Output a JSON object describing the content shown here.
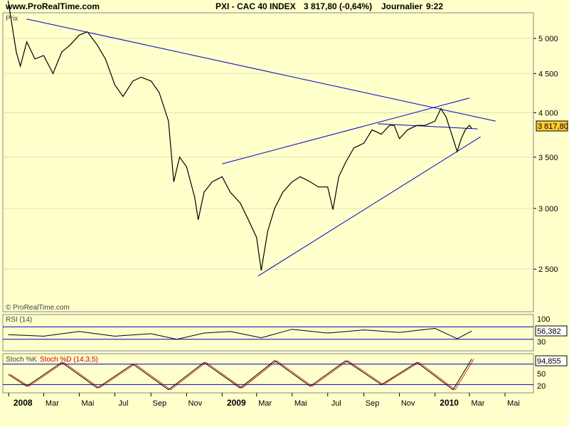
{
  "header": {
    "site": "www.ProRealTime.com",
    "ticker_line": "PXI - CAC 40 INDEX",
    "last_change": "3 817,80 (-0,64%)",
    "period": "Journalier",
    "time": "9:22"
  },
  "panels": {
    "price_label": "Prix",
    "copyright": "© ProRealTime.com",
    "rsi_label": "RSI (14)",
    "stoch_label_k": "Stoch %K",
    "stoch_label_d": "Stoch %D (14,3,5)"
  },
  "colors": {
    "background": "#ffffcc",
    "price_line": "#000000",
    "trend_line": "#0000cc",
    "stoch_d": "#cc0000",
    "badge_bg": "#ffcc33"
  },
  "chart_data": [
    {
      "type": "line",
      "title": "",
      "xlabel": "",
      "ylabel": "",
      "y_scale": "log",
      "ylim": [
        2200,
        5400
      ],
      "y_ticks": [
        2500,
        3000,
        3500,
        4000,
        4500,
        5000
      ],
      "y_tick_labels": [
        "2 500",
        "3 000",
        "3 500",
        "4 000",
        "4 500",
        "5 000"
      ],
      "x_ticks": [
        "2008",
        "Mar",
        "Mai",
        "Jul",
        "Sep",
        "Nov",
        "2009",
        "Mar",
        "Mai",
        "Jul",
        "Sep",
        "Nov",
        "2010",
        "Mar",
        "Mai"
      ],
      "x_ticks_bold": [
        "2008",
        "2009",
        "2010"
      ],
      "last_value_label": "3 817,80",
      "series": [
        {
          "x": [
            "2007-12-31",
            "2008-01-14",
            "2008-01-21",
            "2008-02-01",
            "2008-02-15",
            "2008-03-01",
            "2008-03-17",
            "2008-04-01",
            "2008-04-15",
            "2008-05-01",
            "2008-05-15",
            "2008-06-01",
            "2008-06-15",
            "2008-07-01",
            "2008-07-15",
            "2008-08-01",
            "2008-08-15",
            "2008-09-01",
            "2008-09-15",
            "2008-10-01",
            "2008-10-10",
            "2008-10-20",
            "2008-11-01",
            "2008-11-15",
            "2008-11-21",
            "2008-12-01",
            "2008-12-15",
            "2009-01-01",
            "2009-01-15",
            "2009-02-01",
            "2009-02-15",
            "2009-03-01",
            "2009-03-09",
            "2009-03-20",
            "2009-04-01",
            "2009-04-15",
            "2009-05-01",
            "2009-05-15",
            "2009-06-01",
            "2009-06-15",
            "2009-07-01",
            "2009-07-10",
            "2009-07-20",
            "2009-08-01",
            "2009-08-15",
            "2009-09-01",
            "2009-09-15",
            "2009-10-01",
            "2009-10-15",
            "2009-10-23",
            "2009-11-01",
            "2009-11-15",
            "2009-12-01",
            "2009-12-15",
            "2010-01-01",
            "2010-01-11",
            "2010-01-20",
            "2010-02-01",
            "2010-02-08",
            "2010-02-15",
            "2010-02-22",
            "2010-03-01",
            "2010-03-05"
          ],
          "values": [
            5600,
            4800,
            4600,
            4950,
            4700,
            4750,
            4500,
            4800,
            4900,
            5050,
            5100,
            4900,
            4700,
            4350,
            4200,
            4400,
            4450,
            4400,
            4250,
            3900,
            3250,
            3500,
            3400,
            3100,
            2900,
            3150,
            3250,
            3300,
            3150,
            3050,
            2900,
            2750,
            2490,
            2800,
            3000,
            3150,
            3250,
            3300,
            3250,
            3200,
            3200,
            2990,
            3300,
            3450,
            3600,
            3650,
            3800,
            3750,
            3850,
            3850,
            3700,
            3800,
            3850,
            3850,
            3900,
            4050,
            3950,
            3700,
            3560,
            3700,
            3800,
            3850,
            3818
          ]
        }
      ],
      "trendlines": [
        {
          "from": [
            "2008-02-01",
            5300
          ],
          "to": [
            "2010-04-15",
            3900
          ]
        },
        {
          "from": [
            "2009-01-01",
            3430
          ],
          "to": [
            "2010-03-01",
            4180
          ]
        },
        {
          "from": [
            "2009-03-04",
            2450
          ],
          "to": [
            "2010-03-20",
            3720
          ]
        },
        {
          "from": [
            "2009-09-25",
            3870
          ],
          "to": [
            "2010-03-15",
            3810
          ]
        }
      ]
    },
    {
      "type": "line",
      "title": "",
      "ylim": [
        0,
        100
      ],
      "y_tick_labels": [
        "100",
        "30"
      ],
      "bands": [
        70,
        30
      ],
      "last_value_label": "56,382",
      "series": [
        {
          "x": [
            "2007-12-31",
            "2008-03-01",
            "2008-05-01",
            "2008-07-01",
            "2008-09-01",
            "2008-10-15",
            "2008-12-01",
            "2009-01-15",
            "2009-03-09",
            "2009-05-01",
            "2009-07-01",
            "2009-09-01",
            "2009-11-01",
            "2010-01-01",
            "2010-02-08",
            "2010-03-05"
          ],
          "values": [
            45,
            40,
            55,
            40,
            48,
            30,
            50,
            55,
            35,
            62,
            50,
            60,
            52,
            65,
            32,
            56.382
          ]
        }
      ]
    },
    {
      "type": "line",
      "title": "",
      "ylim": [
        0,
        100
      ],
      "y_tick_labels": [
        "50",
        "20"
      ],
      "bands": [
        80,
        20
      ],
      "last_value_label": "94,855",
      "series": [
        {
          "x": [
            "2007-12-31",
            "2008-02-01",
            "2008-04-01",
            "2008-06-01",
            "2008-08-01",
            "2008-10-01",
            "2008-12-01",
            "2009-02-01",
            "2009-04-01",
            "2009-06-01",
            "2009-08-01",
            "2009-10-01",
            "2009-12-01",
            "2010-02-01",
            "2010-03-05"
          ],
          "values": [
            50,
            15,
            85,
            10,
            80,
            5,
            85,
            10,
            90,
            15,
            90,
            20,
            85,
            5,
            94.855
          ]
        }
      ]
    }
  ]
}
